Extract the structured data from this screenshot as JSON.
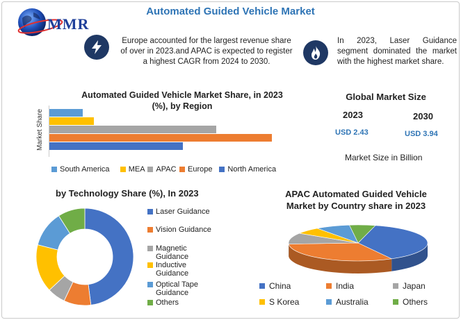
{
  "header": {
    "logo_text": "MMR",
    "title": "Automated Guided Vehicle Market"
  },
  "info": {
    "left": "Europe accounted for the largest revenue share of over in 2023.and APAC is expected to register a highest CAGR from 2024 to 2030.",
    "right": "In 2023, Laser Guidance segment dominated the market with the highest market share.",
    "left_icon": "lightning-icon",
    "right_icon": "flame-icon"
  },
  "region_chart": {
    "title_line1": "Automated Guided Vehicle Market Share, in 2023",
    "title_line2": "(%), by Region",
    "ylabel": "Market Share"
  },
  "market_size": {
    "title": "Global Market Size",
    "year1": "2023",
    "year2": "2030",
    "value1": "USD 2.43",
    "value2": "USD 3.94",
    "note": "Market Size in Billion"
  },
  "tech_chart": {
    "title": "by Technology Share (%), In 2023"
  },
  "apac_chart": {
    "title_line1": "APAC Automated Guided Vehicle",
    "title_line2": "Market by Country share in 2023"
  },
  "chart_data": [
    {
      "type": "bar",
      "orientation": "horizontal",
      "title": "Automated Guided Vehicle Market Share, in 2023 (%), by Region",
      "ylabel": "Market Share",
      "categories": [
        "South America",
        "MEA",
        "APAC",
        "Europe",
        "North America"
      ],
      "values": [
        6,
        8,
        30,
        40,
        24
      ],
      "colors": [
        "#5b9bd5",
        "#ffc000",
        "#a5a5a5",
        "#ed7d31",
        "#4472c4"
      ],
      "legend": "bottom"
    },
    {
      "type": "pie",
      "style": "donut",
      "title": "by Technology Share (%), In 2023",
      "categories": [
        "Laser Guidance",
        "Vision Guidance",
        "Magnetic Guidance",
        "Inductive Guidance",
        "Optical Tape Guidance",
        "Others"
      ],
      "values": [
        48,
        9,
        6,
        16,
        12,
        9
      ],
      "colors": [
        "#4472c4",
        "#ed7d31",
        "#a5a5a5",
        "#ffc000",
        "#5b9bd5",
        "#70ad47"
      ],
      "legend": "right"
    },
    {
      "type": "pie",
      "style": "3d",
      "title": "APAC Automated Guided Vehicle Market by Country share in 2023",
      "categories": [
        "China",
        "India",
        "Japan",
        "S Korea",
        "Australia",
        "Others"
      ],
      "values": [
        38,
        32,
        10,
        6,
        8,
        6
      ],
      "colors": [
        "#4472c4",
        "#ed7d31",
        "#a5a5a5",
        "#ffc000",
        "#5b9bd5",
        "#70ad47"
      ],
      "legend": "bottom"
    }
  ]
}
